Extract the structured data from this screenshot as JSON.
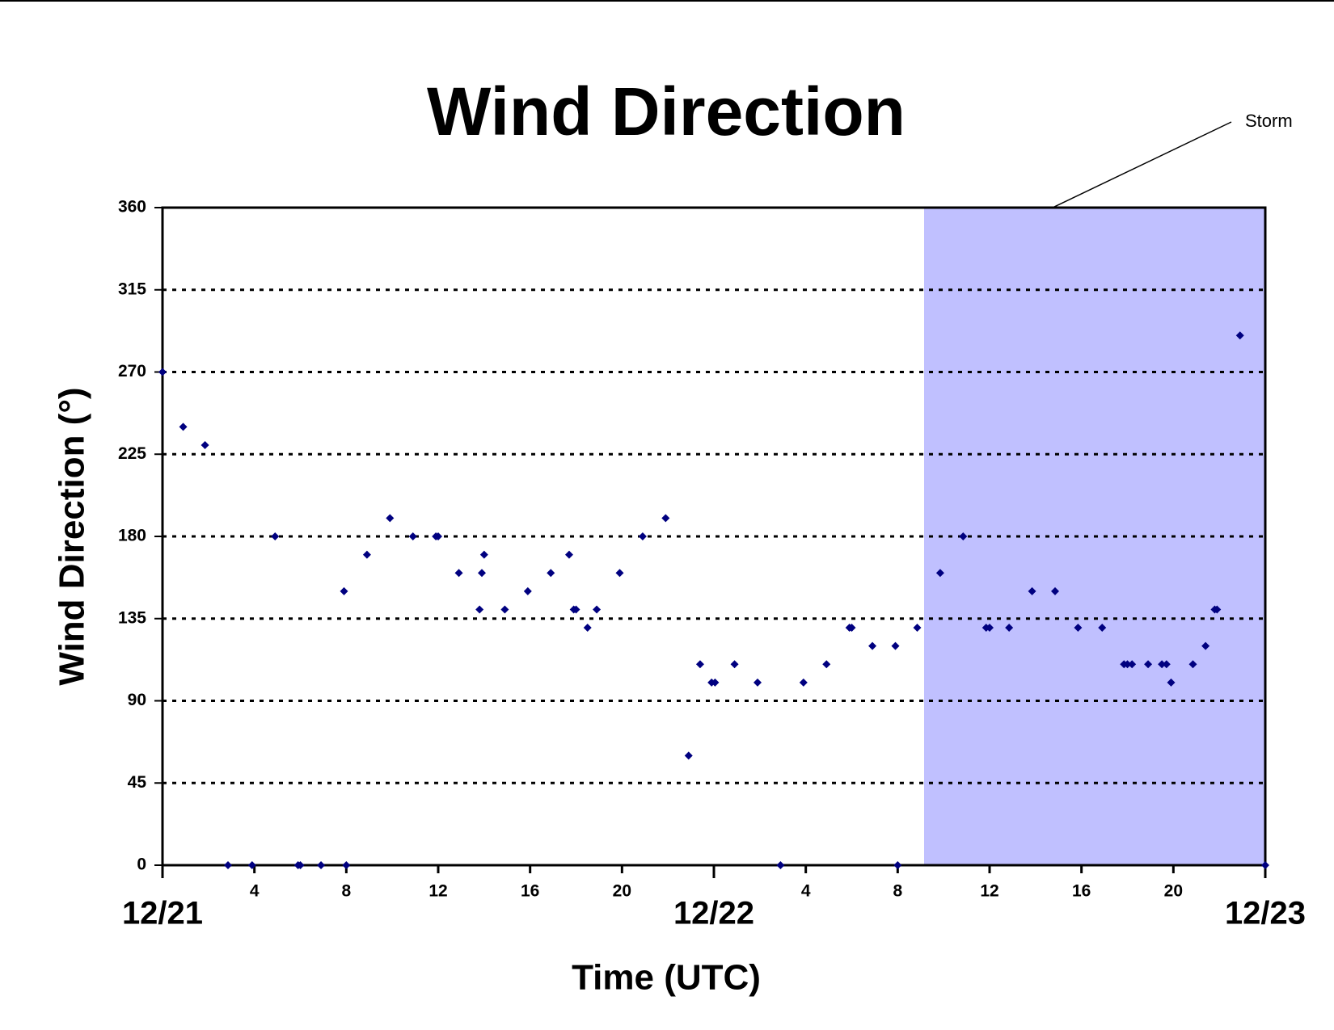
{
  "chart_data": {
    "type": "scatter",
    "title": "Wind Direction",
    "xlabel": "Time (UTC)",
    "ylabel": "Wind Direction (°)",
    "color": "#000080",
    "shade": {
      "label": "Storm",
      "x": [
        33.15,
        48
      ],
      "color": "#c0c0ff"
    },
    "x": [
      0,
      0.9,
      1.85,
      2.85,
      3.9,
      4.9,
      5.9,
      6,
      6.9,
      7.9,
      8,
      8.9,
      9.9,
      10.9,
      11.9,
      12,
      12.9,
      13.8,
      13.9,
      14,
      14.9,
      15.9,
      16.9,
      17.7,
      17.9,
      18,
      18.5,
      18.9,
      19.9,
      20.9,
      21.9,
      22.9,
      23.4,
      23.9,
      24.05,
      24.9,
      25.9,
      26.9,
      27.9,
      28.9,
      29.9,
      30,
      30.9,
      31.9,
      32,
      32.85,
      33.85,
      34.85,
      35.85,
      36,
      36.85,
      37.85,
      38.85,
      39.85,
      40.9,
      41.85,
      42,
      42.2,
      42.9,
      43.5,
      43.7,
      43.9,
      44.85,
      45.4,
      45.8,
      45.9,
      46.9,
      48
    ],
    "values": [
      270,
      240,
      230,
      0,
      0,
      180,
      0,
      0,
      0,
      150,
      0,
      170,
      190,
      180,
      180,
      180,
      160,
      140,
      160,
      170,
      140,
      150,
      160,
      170,
      140,
      140,
      130,
      140,
      160,
      180,
      190,
      60,
      110,
      100,
      100,
      110,
      100,
      0,
      100,
      110,
      130,
      130,
      120,
      120,
      0,
      130,
      160,
      180,
      130,
      130,
      130,
      150,
      150,
      130,
      130,
      110,
      110,
      110,
      110,
      110,
      110,
      100,
      110,
      120,
      140,
      140,
      290,
      0
    ],
    "xlim": [
      0,
      48
    ],
    "xticks": [
      {
        "value": 0,
        "label": "12/21"
      },
      4,
      8,
      12,
      16,
      20,
      {
        "value": 24,
        "label": "12/22"
      },
      {
        "value": 28,
        "label": "4"
      },
      {
        "value": 32,
        "label": "8"
      },
      {
        "value": 36,
        "label": "12"
      },
      {
        "value": 40,
        "label": "16"
      },
      {
        "value": 44,
        "label": "20"
      },
      {
        "value": 48,
        "label": "12/23"
      }
    ],
    "ylim": [
      0,
      360
    ],
    "yticks": [
      0,
      45,
      90,
      135,
      180,
      225,
      270,
      315,
      360
    ],
    "grid": true
  }
}
